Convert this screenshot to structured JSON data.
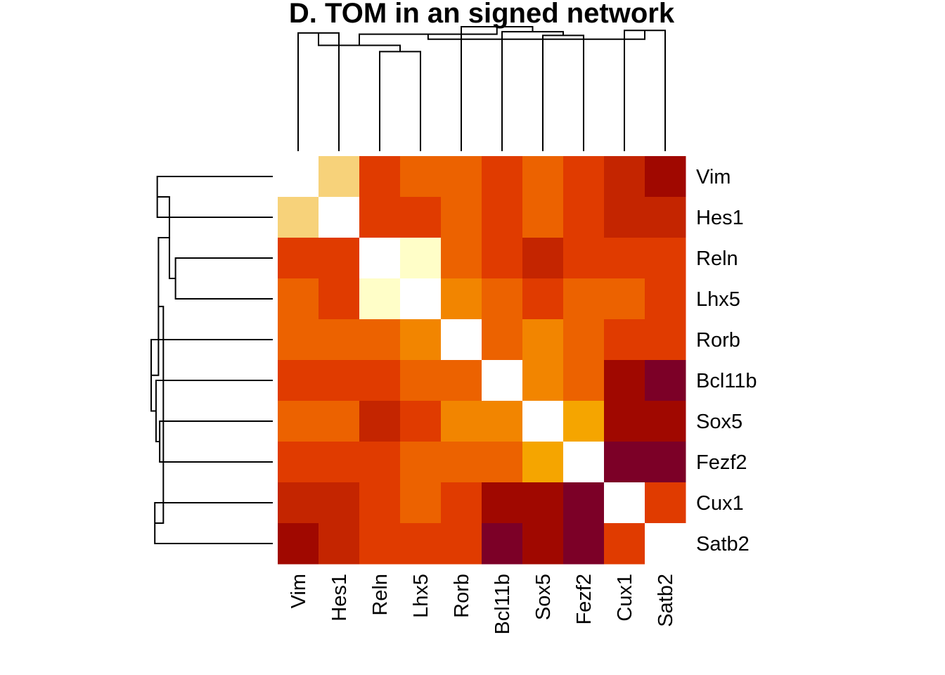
{
  "chart_data": {
    "type": "heatmap",
    "title": "D. TOM in an signed network",
    "rows": [
      "Vim",
      "Hes1",
      "Reln",
      "Lhx5",
      "Rorb",
      "Bcl11b",
      "Sox5",
      "Fezf2",
      "Cux1",
      "Satb2"
    ],
    "columns": [
      "Vim",
      "Hes1",
      "Reln",
      "Lhx5",
      "Rorb",
      "Bcl11b",
      "Sox5",
      "Fezf2",
      "Cux1",
      "Satb2"
    ],
    "palette": [
      "#ffffff",
      "#fffec8",
      "#f7d27a",
      "#f5a500",
      "#f28500",
      "#ec6200",
      "#e03b00",
      "#c42500",
      "#a00800",
      "#7c0027"
    ],
    "values": [
      [
        0,
        2,
        6,
        5,
        5,
        6,
        5,
        6,
        7,
        8
      ],
      [
        2,
        0,
        6,
        6,
        5,
        6,
        5,
        6,
        7,
        7
      ],
      [
        6,
        6,
        0,
        1,
        5,
        6,
        7,
        6,
        6,
        6
      ],
      [
        5,
        6,
        1,
        0,
        4,
        5,
        6,
        5,
        5,
        6
      ],
      [
        5,
        5,
        5,
        4,
        0,
        5,
        4,
        5,
        6,
        6
      ],
      [
        6,
        6,
        6,
        5,
        5,
        0,
        4,
        5,
        8,
        9
      ],
      [
        5,
        5,
        7,
        6,
        4,
        4,
        0,
        3,
        8,
        8
      ],
      [
        6,
        6,
        6,
        5,
        5,
        5,
        3,
        0,
        9,
        9
      ],
      [
        7,
        7,
        6,
        5,
        6,
        8,
        8,
        9,
        0,
        6
      ],
      [
        8,
        7,
        6,
        6,
        6,
        9,
        8,
        9,
        6,
        0
      ]
    ],
    "row_dendrogram": "left",
    "column_dendrogram": "top"
  }
}
